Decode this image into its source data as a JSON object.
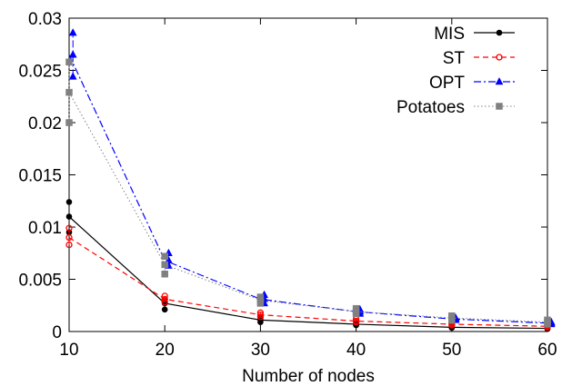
{
  "chart_data": {
    "type": "line",
    "title": "",
    "xlabel": "Number of nodes",
    "ylabel": "",
    "xlim": [
      10,
      60
    ],
    "ylim": [
      0,
      0.03
    ],
    "x_ticks": [
      {
        "value": 10,
        "label": "10"
      },
      {
        "value": 20,
        "label": "20"
      },
      {
        "value": 30,
        "label": "30"
      },
      {
        "value": 40,
        "label": "40"
      },
      {
        "value": 50,
        "label": "50"
      },
      {
        "value": 60,
        "label": "60"
      }
    ],
    "y_ticks": [
      {
        "value": 0,
        "label": "0"
      },
      {
        "value": 0.005,
        "label": "0.005"
      },
      {
        "value": 0.01,
        "label": "0.01"
      },
      {
        "value": 0.015,
        "label": "0.015"
      },
      {
        "value": 0.02,
        "label": "0.02"
      },
      {
        "value": 0.025,
        "label": "0.025"
      },
      {
        "value": 0.03,
        "label": "0.03"
      }
    ],
    "grid": false,
    "legend_position": "top-right",
    "series": [
      {
        "name": "MIS",
        "color": "#000000",
        "dash": "solid",
        "marker": "circle",
        "x": [
          10,
          20,
          30,
          40,
          50,
          60
        ],
        "y": [
          0.011,
          0.0027,
          0.0011,
          0.0007,
          0.0004,
          0.0003
        ],
        "error_x_offset": 0,
        "error_low": [
          0.0095,
          0.0021,
          0.0009,
          0.0006,
          0.00035,
          0.00025
        ],
        "error_high": [
          0.0124,
          0.003,
          0.0013,
          0.0008,
          0.00045,
          0.00035
        ]
      },
      {
        "name": "ST",
        "color": "#ff0000",
        "dash": "dashed",
        "marker": "open-circle",
        "x": [
          10,
          20,
          30,
          40,
          50,
          60
        ],
        "y": [
          0.009,
          0.0031,
          0.0016,
          0.001,
          0.0007,
          0.0005
        ],
        "error_x_offset": 0,
        "error_low": [
          0.0083,
          0.0028,
          0.0014,
          0.0009,
          0.0006,
          0.0004
        ],
        "error_high": [
          0.0099,
          0.0034,
          0.0018,
          0.0012,
          0.0008,
          0.0006
        ]
      },
      {
        "name": "OPT",
        "color": "#0000ff",
        "dash": "dash-dot",
        "marker": "triangle",
        "x": [
          10,
          20,
          30,
          40,
          50,
          60
        ],
        "y": [
          0.0265,
          0.0068,
          0.0031,
          0.0019,
          0.0012,
          0.0008
        ],
        "error_x_offset": 0.4,
        "error_low": [
          0.0244,
          0.0063,
          0.0027,
          0.0017,
          0.0011,
          0.0007
        ],
        "error_high": [
          0.0286,
          0.0075,
          0.0035,
          0.0021,
          0.0013,
          0.0009
        ]
      },
      {
        "name": "Potatoes",
        "color": "#808080",
        "dash": "dotted",
        "marker": "square",
        "x": [
          10,
          20,
          30,
          40,
          50,
          60
        ],
        "y": [
          0.0229,
          0.0064,
          0.003,
          0.0019,
          0.0013,
          0.0009
        ],
        "error_x_offset": 0,
        "error_low": [
          0.02,
          0.0055,
          0.0027,
          0.0017,
          0.0011,
          0.0007
        ],
        "error_high": [
          0.0258,
          0.0072,
          0.0033,
          0.0022,
          0.0015,
          0.0011
        ]
      }
    ]
  }
}
